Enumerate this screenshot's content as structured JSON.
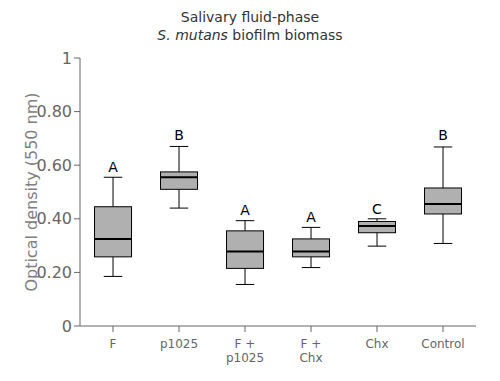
{
  "chart_data": {
    "type": "box",
    "title": "Salivary fluid-phase",
    "subtitle": "S. mutans biofilm biomass",
    "ylabel": "Optical density (550 nm)",
    "categories": [
      "F",
      "p1025",
      "F +\np1025",
      "F +\nChx",
      "Chx",
      "Control"
    ],
    "boxes": [
      {
        "whislo": 0.185,
        "q1": 0.258,
        "med": 0.325,
        "q3": 0.445,
        "whishi": 0.555
      },
      {
        "whislo": 0.44,
        "q1": 0.51,
        "med": 0.555,
        "q3": 0.575,
        "whishi": 0.67
      },
      {
        "whislo": 0.155,
        "q1": 0.215,
        "med": 0.278,
        "q3": 0.355,
        "whishi": 0.393
      },
      {
        "whislo": 0.218,
        "q1": 0.258,
        "med": 0.278,
        "q3": 0.325,
        "whishi": 0.368
      },
      {
        "whislo": 0.298,
        "q1": 0.348,
        "med": 0.373,
        "q3": 0.39,
        "whishi": 0.4
      },
      {
        "whislo": 0.308,
        "q1": 0.418,
        "med": 0.455,
        "q3": 0.515,
        "whishi": 0.668
      }
    ],
    "annotations": [
      {
        "text": "A",
        "x": "F",
        "y": 0.568
      },
      {
        "text": "B",
        "x": "p1025",
        "y": 0.685
      },
      {
        "text": "A",
        "x": "F +\np1025",
        "y": 0.408
      },
      {
        "text": "A",
        "x": "F +\nChx",
        "y": 0.382
      },
      {
        "text": "C",
        "x": "Chx",
        "y": 0.412
      },
      {
        "text": "B",
        "x": "Control",
        "y": 0.685
      }
    ],
    "color": "#b0b0b0",
    "ylim": [
      0,
      1
    ],
    "yticks": [
      0,
      {
        "value": 0.2,
        "label": "0.20"
      },
      {
        "value": 0.4,
        "label": "0.40"
      },
      {
        "value": 0.6,
        "label": "0.60"
      },
      {
        "value": 0.8,
        "label": "0.80"
      },
      1
    ],
    "grid": false
  }
}
